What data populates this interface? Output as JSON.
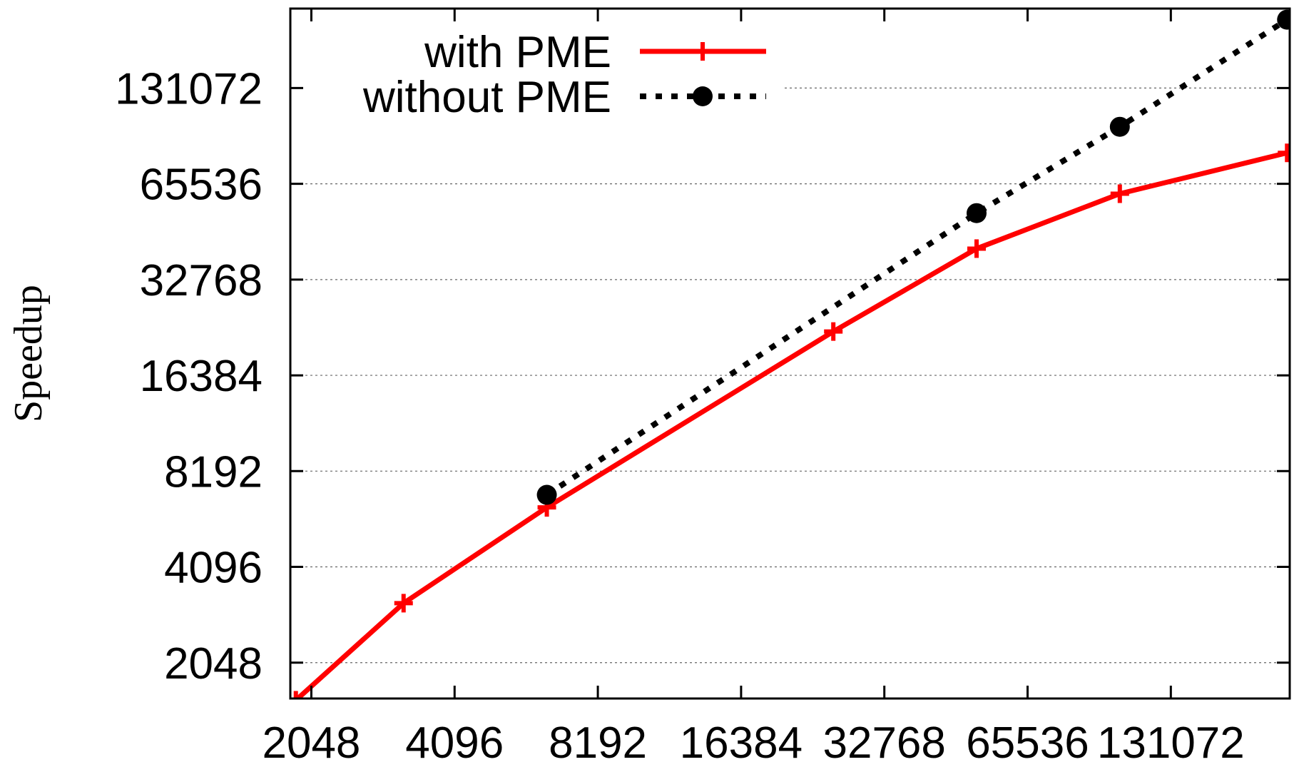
{
  "chart_data": {
    "type": "line",
    "title": "",
    "xlabel": "",
    "ylabel": "Speedup",
    "x_scale": "log2",
    "y_scale": "log2",
    "xlim": [
      1850,
      233000
    ],
    "ylim": [
      1580,
      233000
    ],
    "x_ticks": [
      2048,
      4096,
      8192,
      16384,
      32768,
      65536,
      131072
    ],
    "y_ticks": [
      2048,
      4096,
      8192,
      16384,
      32768,
      65536,
      131072
    ],
    "x_tick_labels": [
      "2048",
      "4096",
      "8192",
      "16384",
      "32768",
      "65536",
      "131072"
    ],
    "y_tick_labels": [
      "2048",
      "4096",
      "8192",
      "16384",
      "32768",
      "65536",
      "131072"
    ],
    "grid": "horizontal dotted",
    "legend_position": "top-left",
    "series": [
      {
        "name": "with PME",
        "color": "#ff0000",
        "line_style": "solid",
        "marker": "plus",
        "x": [
          1900,
          3200,
          6400,
          25600,
          51200,
          102400,
          230000
        ],
        "y": [
          1560,
          3150,
          6300,
          22500,
          41000,
          61000,
          82000
        ]
      },
      {
        "name": "without PME",
        "color": "#000000",
        "line_style": "dotted",
        "marker": "circle",
        "x": [
          6400,
          51200,
          102400,
          230000
        ],
        "y": [
          6900,
          53000,
          99000,
          215000
        ]
      }
    ]
  }
}
